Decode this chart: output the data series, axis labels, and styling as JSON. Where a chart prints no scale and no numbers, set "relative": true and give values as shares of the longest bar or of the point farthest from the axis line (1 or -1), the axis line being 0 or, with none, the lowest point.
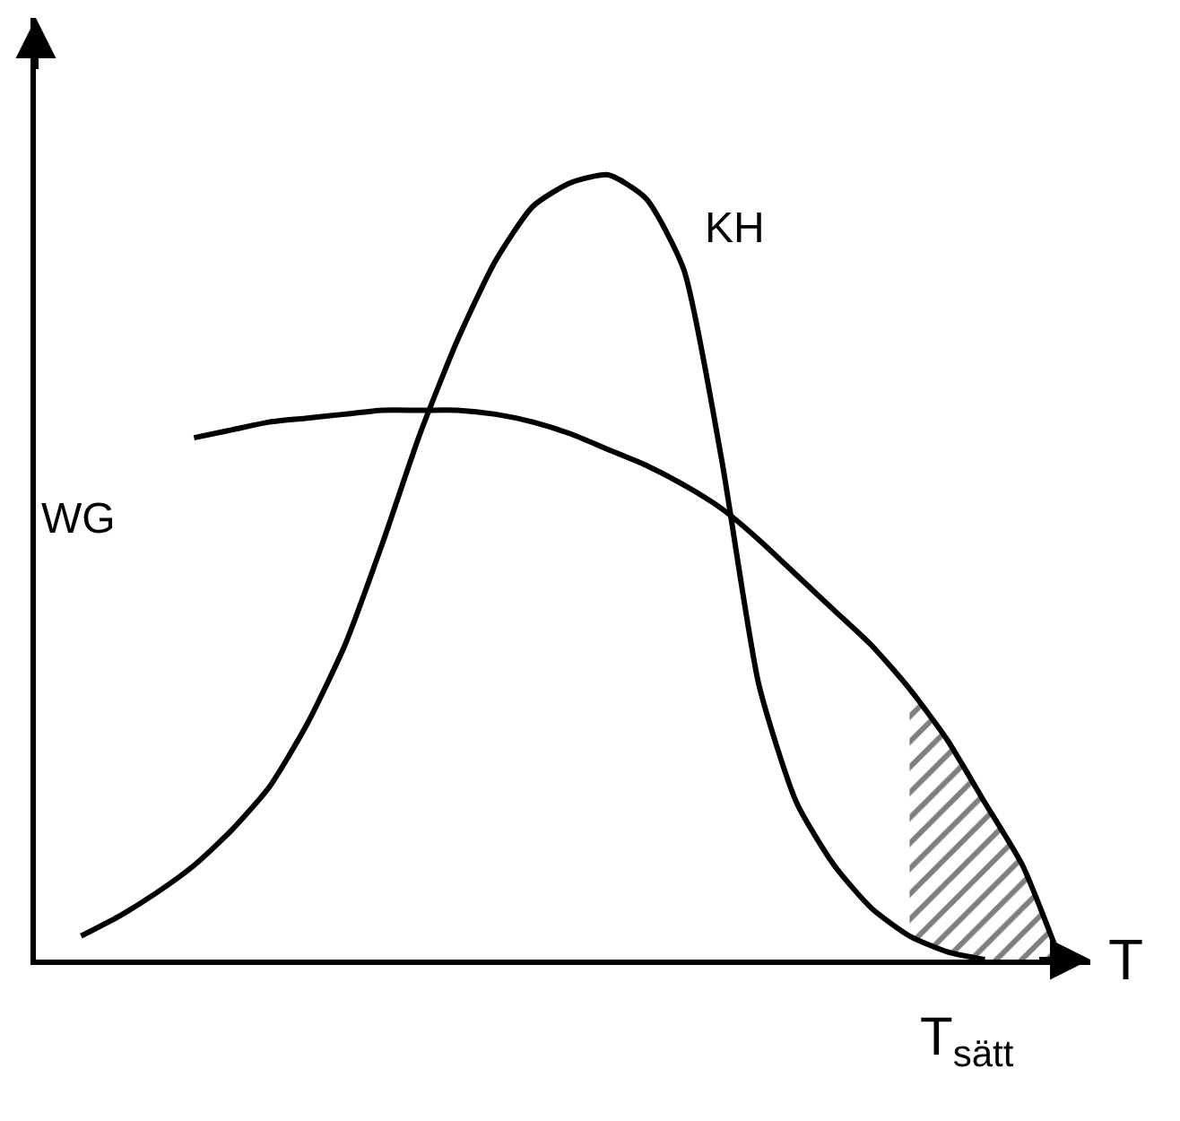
{
  "chart_data": {
    "type": "line",
    "relative": true,
    "xlabel": "T",
    "legend": false,
    "line_style": "solid",
    "marker": "none",
    "categories": [
      null,
      null,
      null,
      null,
      null,
      null,
      null,
      null,
      null,
      null,
      null,
      null,
      null,
      null,
      null,
      null,
      null,
      null,
      null,
      null,
      null,
      null,
      null,
      null,
      null,
      null,
      null
    ],
    "series": [
      {
        "name": "KH",
        "color": "#000000",
        "values": [
          0.03,
          0.055,
          0.085,
          0.12,
          0.165,
          0.22,
          0.3,
          0.4,
          0.53,
          0.67,
          0.79,
          0.89,
          0.96,
          0.99,
          1.0,
          0.97,
          0.88,
          0.64,
          0.35,
          0.2,
          0.12,
          0.065,
          0.03,
          0.01,
          0,
          null,
          null
        ]
      },
      {
        "name": "WG",
        "color": "#000000",
        "values": [
          null,
          null,
          null,
          0.665,
          0.675,
          0.685,
          0.69,
          0.695,
          0.7,
          0.7,
          0.7,
          0.695,
          0.685,
          0.67,
          0.65,
          0.63,
          0.605,
          0.575,
          0.535,
          0.49,
          0.445,
          0.4,
          0.345,
          0.28,
          0.2,
          0.12,
          0
        ],
        "lower": [
          null,
          null,
          null,
          null,
          null,
          null,
          null,
          null,
          null,
          null,
          null,
          null,
          null,
          null,
          null,
          null,
          null,
          null,
          null,
          null,
          null,
          null,
          0.03,
          0.01,
          0,
          0,
          0
        ],
        "upper": [
          null,
          null,
          null,
          null,
          null,
          null,
          null,
          null,
          null,
          null,
          null,
          null,
          null,
          null,
          null,
          null,
          null,
          null,
          null,
          null,
          null,
          null,
          0.345,
          0.28,
          0.2,
          0.12,
          0
        ]
      }
    ],
    "annotations": [
      "T$_{sätt}$"
    ]
  }
}
